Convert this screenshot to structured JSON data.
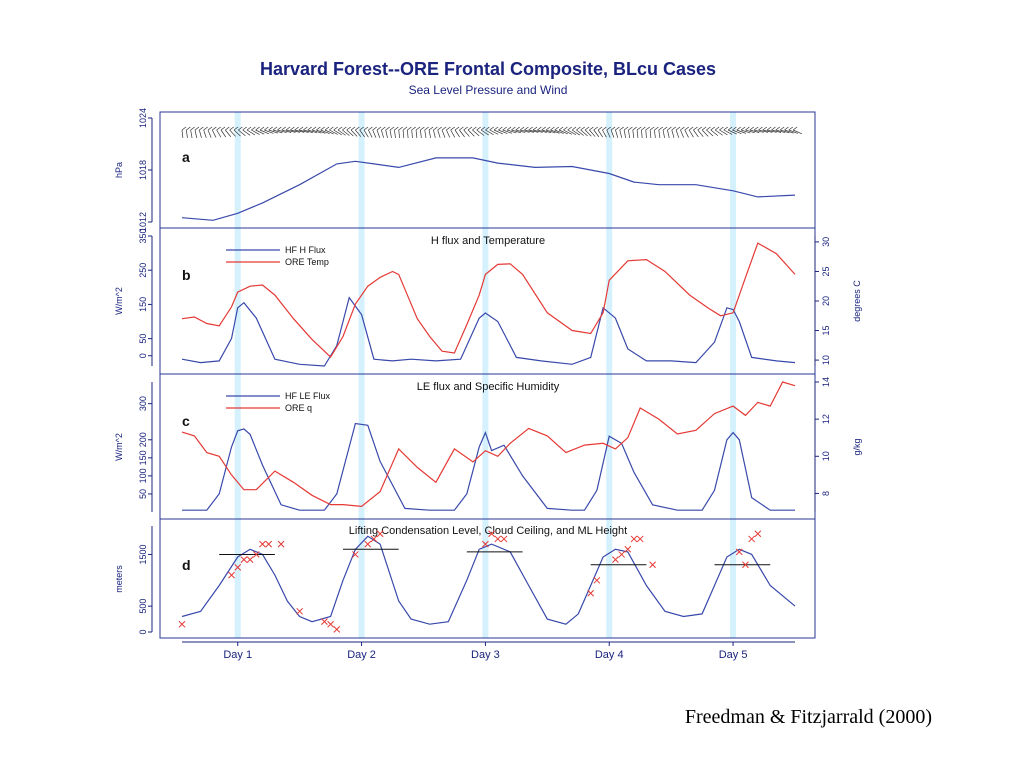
{
  "figure": {
    "title": "Harvard Forest--ORE Frontal Composite, BLcu Cases",
    "subtitle": "Sea Level Pressure and Wind",
    "credit": "Freedman & Fitzjarrald (2000)",
    "colors": {
      "blue": "#3949ab",
      "red": "#e53935",
      "axis": "#1a237e",
      "daystripe": "#b3e5fc",
      "frame": "#283593"
    }
  },
  "chart_data": [
    {
      "type": "line",
      "panel": "a",
      "title": "",
      "ylabel": "hPa",
      "ylim": [
        1012,
        1024
      ],
      "yticks": [
        "1012",
        "1018",
        "1024"
      ],
      "x_start": 0.55,
      "x_end": 5.5,
      "series": [
        {
          "name": "",
          "x": [
            0.55,
            0.8,
            1.0,
            1.2,
            1.5,
            1.8,
            1.95,
            2.1,
            2.3,
            2.6,
            2.9,
            3.1,
            3.4,
            3.7,
            4.0,
            4.2,
            4.4,
            4.7,
            5.0,
            5.2,
            5.5
          ],
          "y": [
            1012.5,
            1012.2,
            1013.0,
            1014.2,
            1016.3,
            1018.7,
            1019.0,
            1018.7,
            1018.3,
            1019.4,
            1019.4,
            1018.8,
            1018.3,
            1018.4,
            1017.6,
            1016.6,
            1016.3,
            1016.3,
            1015.6,
            1014.9,
            1015.1
          ]
        }
      ],
      "wind_barbs": true
    },
    {
      "type": "line",
      "panel": "b",
      "title": "H flux and Temperature",
      "ylabel": "W/m^2",
      "ylabel_right": "degrees C",
      "ylim": [
        -30,
        350
      ],
      "ylim_right": [
        9,
        31
      ],
      "yticks": [
        "0",
        "50",
        "150",
        "250",
        "350"
      ],
      "yticks_right": [
        "10",
        "15",
        "20",
        "25",
        "30"
      ],
      "x_start": 0.55,
      "x_end": 5.5,
      "series": [
        {
          "name": "HF H Flux",
          "axis": "left",
          "x": [
            0.55,
            0.7,
            0.85,
            0.95,
            1.0,
            1.05,
            1.15,
            1.3,
            1.5,
            1.7,
            1.8,
            1.9,
            2.0,
            2.1,
            2.25,
            2.4,
            2.6,
            2.8,
            2.95,
            3.0,
            3.1,
            3.25,
            3.45,
            3.7,
            3.85,
            3.95,
            4.05,
            4.15,
            4.3,
            4.5,
            4.7,
            4.85,
            4.95,
            5.0,
            5.05,
            5.15,
            5.35,
            5.5
          ],
          "y": [
            -10,
            -20,
            -15,
            50,
            140,
            155,
            110,
            -10,
            -25,
            -30,
            30,
            170,
            120,
            -10,
            -15,
            -10,
            -15,
            -10,
            110,
            125,
            100,
            -5,
            -15,
            -25,
            -5,
            140,
            110,
            20,
            -15,
            -15,
            -20,
            40,
            140,
            135,
            100,
            -5,
            -15,
            -20
          ]
        },
        {
          "name": "ORE Temp",
          "axis": "right",
          "x": [
            0.55,
            0.65,
            0.75,
            0.85,
            0.95,
            1.0,
            1.1,
            1.2,
            1.3,
            1.45,
            1.6,
            1.75,
            1.85,
            1.95,
            2.05,
            2.15,
            2.25,
            2.3,
            2.35,
            2.45,
            2.55,
            2.65,
            2.75,
            2.85,
            2.95,
            3.0,
            3.1,
            3.2,
            3.3,
            3.5,
            3.7,
            3.85,
            3.95,
            4.0,
            4.15,
            4.3,
            4.45,
            4.65,
            4.8,
            4.9,
            5.0,
            5.1,
            5.2,
            5.35,
            5.5
          ],
          "y": [
            17,
            17.3,
            16.2,
            15.8,
            19,
            21.5,
            22.5,
            22.7,
            21,
            17,
            13.5,
            10.5,
            14,
            19.5,
            22.5,
            24,
            25,
            24.5,
            22,
            17,
            14,
            11.5,
            11.2,
            16,
            21,
            24.5,
            26.2,
            26.3,
            24.5,
            18,
            15,
            14.5,
            18,
            23.5,
            26.8,
            27,
            25,
            21,
            18.8,
            17.5,
            18,
            24,
            29.8,
            28,
            24.5
          ]
        }
      ]
    },
    {
      "type": "line",
      "panel": "c",
      "title": "LE flux and Specific Humidity",
      "ylabel": "W/m^2",
      "ylabel_right": "g/kg",
      "ylim": [
        0,
        360
      ],
      "ylim_right": [
        7,
        14
      ],
      "yticks": [
        "50",
        "100",
        "150",
        "200",
        "300"
      ],
      "yticks_right": [
        "8",
        "10",
        "12",
        "14"
      ],
      "x_start": 0.55,
      "x_end": 5.5,
      "series": [
        {
          "name": "HF LE Flux",
          "axis": "left",
          "x": [
            0.55,
            0.75,
            0.85,
            0.95,
            1.0,
            1.05,
            1.1,
            1.2,
            1.35,
            1.5,
            1.7,
            1.8,
            1.9,
            1.95,
            2.05,
            2.15,
            2.35,
            2.55,
            2.75,
            2.85,
            2.95,
            3.0,
            3.05,
            3.15,
            3.3,
            3.5,
            3.7,
            3.8,
            3.9,
            4.0,
            4.1,
            4.2,
            4.35,
            4.55,
            4.75,
            4.85,
            4.95,
            5.0,
            5.05,
            5.15,
            5.3,
            5.5
          ],
          "y": [
            5,
            5,
            50,
            180,
            225,
            230,
            215,
            130,
            20,
            5,
            5,
            50,
            180,
            245,
            240,
            140,
            10,
            5,
            5,
            50,
            180,
            220,
            170,
            185,
            100,
            10,
            5,
            5,
            60,
            210,
            190,
            110,
            20,
            5,
            5,
            60,
            200,
            220,
            200,
            40,
            5,
            5
          ]
        },
        {
          "name": "ORE q",
          "axis": "right",
          "x": [
            0.55,
            0.65,
            0.75,
            0.85,
            0.95,
            1.05,
            1.15,
            1.3,
            1.45,
            1.6,
            1.75,
            1.85,
            2.0,
            2.15,
            2.3,
            2.45,
            2.6,
            2.75,
            2.9,
            3.0,
            3.1,
            3.2,
            3.35,
            3.5,
            3.65,
            3.8,
            3.95,
            4.05,
            4.15,
            4.25,
            4.4,
            4.55,
            4.7,
            4.85,
            5.0,
            5.1,
            5.2,
            5.3,
            5.4,
            5.5
          ],
          "y": [
            11.3,
            11.1,
            10.2,
            10,
            9,
            8.2,
            8.2,
            9.2,
            8.6,
            7.9,
            7.4,
            7.4,
            7.3,
            8.1,
            10.4,
            9.4,
            8.6,
            10.4,
            9.7,
            10.3,
            10,
            10.7,
            11.5,
            11.1,
            10.2,
            10.6,
            10.7,
            10.4,
            11,
            12.6,
            12,
            11.2,
            11.4,
            12.3,
            12.7,
            12.2,
            12.9,
            12.7,
            14,
            13.8
          ]
        }
      ]
    },
    {
      "type": "line",
      "panel": "d",
      "title": "Lifting Condensation Level, Cloud Ceiling, and ML Height",
      "ylabel": "meters",
      "ylim": [
        0,
        2050
      ],
      "yticks": [
        "0",
        "500",
        "1500"
      ],
      "x_start": 0.55,
      "x_end": 5.5,
      "xticks": [
        "Day 1",
        "Day 2",
        "Day 3",
        "Day 4",
        "Day 5"
      ],
      "series": [
        {
          "name": "",
          "x": [
            0.55,
            0.7,
            0.85,
            1.0,
            1.1,
            1.2,
            1.3,
            1.4,
            1.5,
            1.6,
            1.75,
            1.85,
            1.95,
            2.05,
            2.15,
            2.3,
            2.4,
            2.55,
            2.7,
            2.85,
            2.95,
            3.05,
            3.2,
            3.35,
            3.5,
            3.65,
            3.75,
            3.85,
            3.95,
            4.05,
            4.15,
            4.3,
            4.45,
            4.6,
            4.75,
            4.85,
            4.95,
            5.05,
            5.15,
            5.3,
            5.5
          ],
          "y": [
            300,
            400,
            900,
            1450,
            1600,
            1500,
            1100,
            600,
            300,
            200,
            300,
            1000,
            1600,
            1850,
            1700,
            600,
            250,
            150,
            200,
            1000,
            1600,
            1700,
            1550,
            900,
            250,
            150,
            350,
            900,
            1450,
            1600,
            1550,
            900,
            400,
            300,
            350,
            900,
            1450,
            1600,
            1500,
            900,
            500
          ]
        }
      ],
      "ml_height_segments": [
        {
          "x_from": 0.85,
          "x_to": 1.3,
          "y": 1500
        },
        {
          "x_from": 1.85,
          "x_to": 2.3,
          "y": 1600
        },
        {
          "x_from": 2.85,
          "x_to": 3.3,
          "y": 1550
        },
        {
          "x_from": 3.85,
          "x_to": 4.3,
          "y": 1300
        },
        {
          "x_from": 4.85,
          "x_to": 5.3,
          "y": 1300
        }
      ],
      "cloud_ceiling_x": [
        0.55,
        0.95,
        1.0,
        1.05,
        1.1,
        1.15,
        1.2,
        1.25,
        1.35,
        1.5,
        1.7,
        1.75,
        1.8,
        1.95,
        2.05,
        2.1,
        2.15,
        3.0,
        3.05,
        3.1,
        3.15,
        3.85,
        3.9,
        4.05,
        4.1,
        4.15,
        4.2,
        4.25,
        4.35,
        5.05,
        5.1,
        5.15,
        5.2
      ],
      "cloud_ceiling_y": [
        150,
        1100,
        1250,
        1400,
        1400,
        1500,
        1700,
        1700,
        1700,
        400,
        200,
        150,
        50,
        1500,
        1700,
        1800,
        1900,
        1700,
        1900,
        1800,
        1800,
        750,
        1000,
        1400,
        1500,
        1600,
        1800,
        1800,
        1300,
        1550,
        1300,
        1800,
        1900
      ]
    }
  ]
}
